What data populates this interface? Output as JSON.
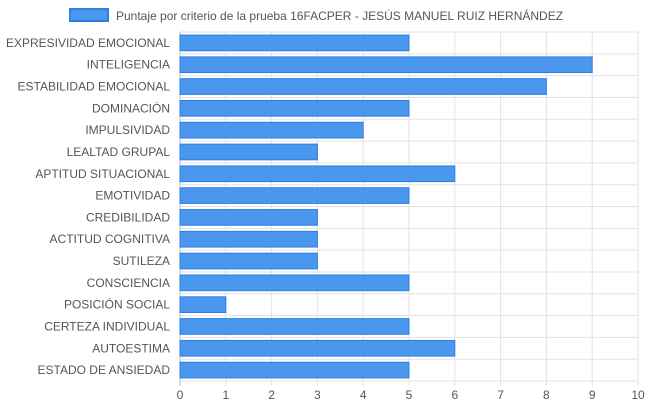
{
  "chart_data": {
    "type": "bar",
    "orientation": "horizontal",
    "categories": [
      "EXPRESIVIDAD EMOCIONAL",
      "INTELIGENCIA",
      "ESTABILIDAD EMOCIONAL",
      "DOMINACIÓN",
      "IMPULSIVIDAD",
      "LEALTAD GRUPAL",
      "APTITUD SITUACIONAL",
      "EMOTIVIDAD",
      "CREDIBILIDAD",
      "ACTITUD COGNITIVA",
      "SUTILEZA",
      "CONSCIENCIA",
      "POSICIÓN SOCIAL",
      "CERTEZA INDIVIDUAL",
      "AUTOESTIMA",
      "ESTADO DE ANSIEDAD"
    ],
    "series": [
      {
        "name": "Puntaje por criterio de la prueba 16FACPER - JESÚS MANUEL RUIZ HERNÁNDEZ",
        "values": [
          5,
          9,
          8,
          5,
          4,
          3,
          6,
          5,
          3,
          3,
          3,
          5,
          1,
          5,
          6,
          5
        ]
      }
    ],
    "xlim": [
      0,
      10
    ],
    "xticks": [
      "0",
      "1",
      "2",
      "3",
      "4",
      "5",
      "6",
      "7",
      "8",
      "9",
      "10"
    ],
    "grid": true,
    "legend_position": "top-center",
    "colors": {
      "bar_fill": "#4a97ee",
      "bar_border": "#2f7fe0",
      "grid": "#e3e3e3",
      "text": "#555555"
    }
  }
}
